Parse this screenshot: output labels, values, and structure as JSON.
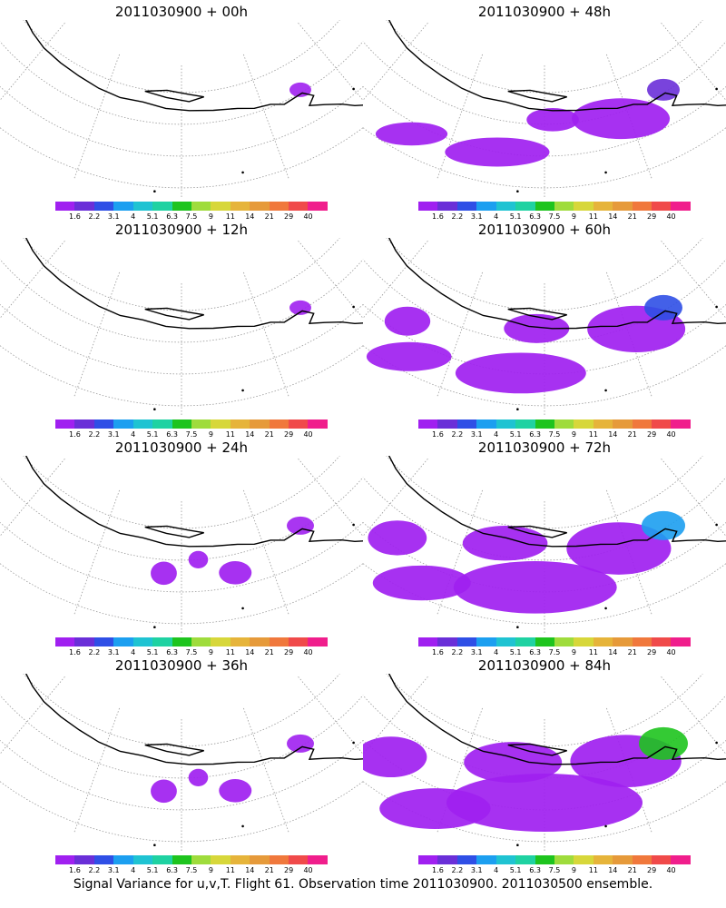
{
  "colorbar": {
    "colors": [
      "#a020f0",
      "#6a2fd8",
      "#2f4fe6",
      "#1c9ff0",
      "#1fc3d2",
      "#1fd2a2",
      "#1ec41e",
      "#9fdc3c",
      "#d7d73a",
      "#e6b43a",
      "#e69a3a",
      "#f0783c",
      "#f04a4a",
      "#f01e8c"
    ],
    "labels": [
      "1.6",
      "2.2",
      "3.1",
      "4",
      "5.1",
      "6.3",
      "7.5",
      "9",
      "11",
      "14",
      "21",
      "29",
      "40"
    ]
  },
  "panels": [
    {
      "title": "2011030900 + 00h",
      "level": 0
    },
    {
      "title": "2011030900 + 48h",
      "level": 2
    },
    {
      "title": "2011030900 + 12h",
      "level": 0
    },
    {
      "title": "2011030900 + 60h",
      "level": 3
    },
    {
      "title": "2011030900 + 24h",
      "level": 1
    },
    {
      "title": "2011030900 + 72h",
      "level": 4
    },
    {
      "title": "2011030900 + 36h",
      "level": 1
    },
    {
      "title": "2011030900 + 84h",
      "level": 5
    }
  ],
  "footer": "Signal Variance for u,v,T. Flight 61. Observation time 2011030900. 2011030500 ensemble."
}
